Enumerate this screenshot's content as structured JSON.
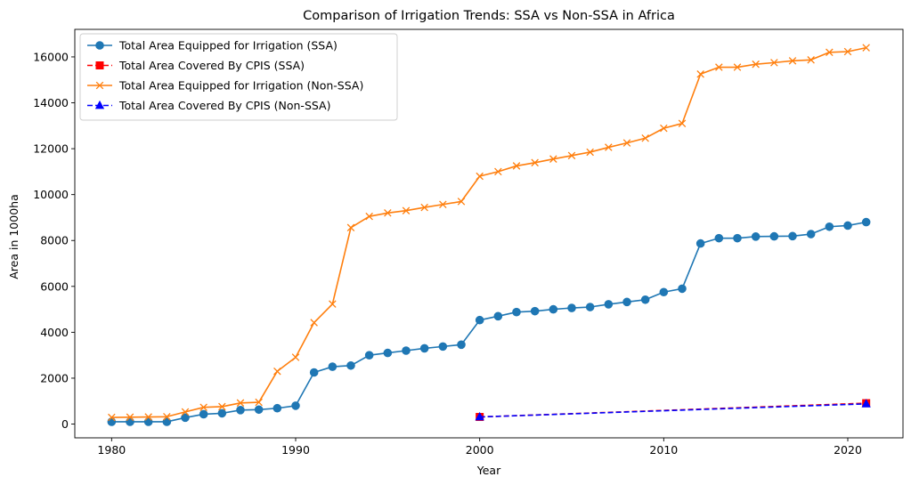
{
  "chart_data": {
    "type": "line",
    "title": "Comparison of Irrigation Trends: SSA vs Non-SSA in Africa",
    "xlabel": "Year",
    "ylabel": "Area in 1000ha",
    "xlim": [
      1978,
      2023
    ],
    "ylim": [
      -600,
      17200
    ],
    "xticks": [
      1980,
      1990,
      2000,
      2010,
      2020
    ],
    "yticks": [
      0,
      2000,
      4000,
      6000,
      8000,
      10000,
      12000,
      14000,
      16000
    ],
    "grid": false,
    "legend_position": "upper-left",
    "series": [
      {
        "name": "Total Area Equipped for Irrigation (SSA)",
        "color": "#1f77b4",
        "marker": "circle",
        "linestyle": "solid",
        "x": [
          1980,
          1981,
          1982,
          1983,
          1984,
          1985,
          1986,
          1987,
          1988,
          1989,
          1990,
          1991,
          1992,
          1993,
          1994,
          1995,
          1996,
          1997,
          1998,
          1999,
          2000,
          2001,
          2002,
          2003,
          2004,
          2005,
          2006,
          2007,
          2008,
          2009,
          2010,
          2011,
          2012,
          2013,
          2014,
          2015,
          2016,
          2017,
          2018,
          2019,
          2020,
          2021
        ],
        "y": [
          100,
          100,
          100,
          100,
          280,
          430,
          470,
          610,
          630,
          690,
          800,
          2250,
          2500,
          2550,
          3000,
          3100,
          3200,
          3300,
          3380,
          3460,
          4530,
          4700,
          4880,
          4920,
          5000,
          5060,
          5100,
          5220,
          5320,
          5420,
          5750,
          5900,
          7870,
          8100,
          8100,
          8170,
          8180,
          8190,
          8280,
          8600,
          8650,
          8800
        ]
      },
      {
        "name": "Total Area Covered By CPIS (SSA)",
        "color": "#ff0000",
        "marker": "square",
        "linestyle": "dashed",
        "x": [
          2000,
          2021
        ],
        "y": [
          310,
          910
        ]
      },
      {
        "name": "Total Area Equipped for Irrigation (Non-SSA)",
        "color": "#ff7f0e",
        "marker": "x",
        "linestyle": "solid",
        "x": [
          1980,
          1981,
          1982,
          1983,
          1984,
          1985,
          1986,
          1987,
          1988,
          1989,
          1990,
          1991,
          1992,
          1993,
          1994,
          1995,
          1996,
          1997,
          1998,
          1999,
          2000,
          2001,
          2002,
          2003,
          2004,
          2005,
          2006,
          2007,
          2008,
          2009,
          2010,
          2011,
          2012,
          2013,
          2014,
          2015,
          2016,
          2017,
          2018,
          2019,
          2020,
          2021
        ],
        "y": [
          290,
          300,
          310,
          320,
          530,
          730,
          760,
          920,
          950,
          2300,
          2910,
          4420,
          5230,
          8560,
          9050,
          9200,
          9300,
          9440,
          9570,
          9700,
          10800,
          11000,
          11250,
          11390,
          11550,
          11700,
          11850,
          12060,
          12250,
          12460,
          12890,
          13100,
          15250,
          15550,
          15550,
          15680,
          15750,
          15830,
          15870,
          16200,
          16230,
          16400
        ]
      },
      {
        "name": "Total Area Covered By CPIS (Non-SSA)",
        "color": "#0000ff",
        "marker": "triangle",
        "linestyle": "dashed",
        "x": [
          2000,
          2021
        ],
        "y": [
          310,
          880
        ]
      }
    ]
  }
}
